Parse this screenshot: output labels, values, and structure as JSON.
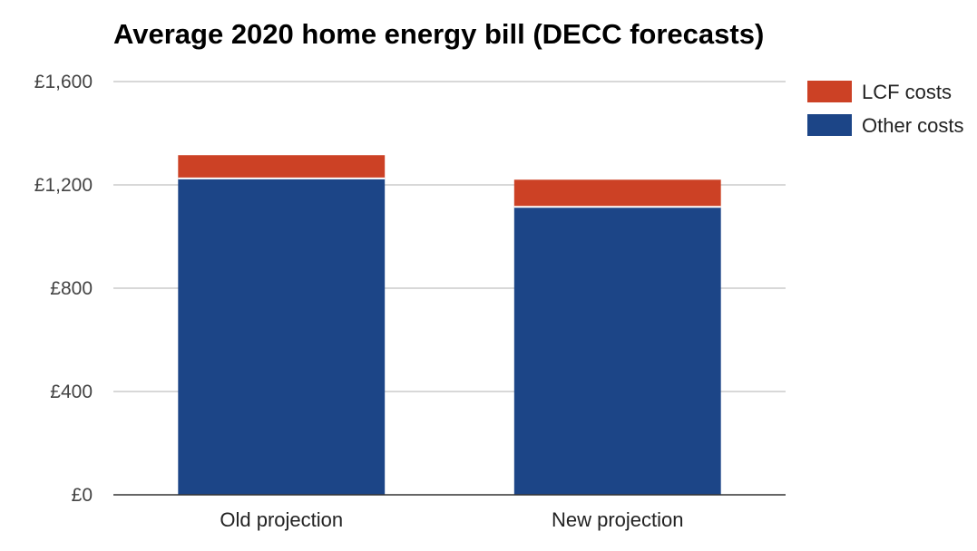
{
  "chart_data": {
    "type": "bar",
    "stacked": true,
    "title": "Average 2020 home energy bill (DECC forecasts)",
    "xlabel": "",
    "ylabel": "",
    "categories": [
      "Old projection",
      "New projection"
    ],
    "series": [
      {
        "name": "Other costs",
        "values": [
          1225,
          1115
        ],
        "color": "#1c4587"
      },
      {
        "name": "LCF costs",
        "values": [
          90,
          105
        ],
        "color": "#cc4125"
      }
    ],
    "ylim": [
      0,
      1600
    ],
    "yticks": [
      0,
      400,
      800,
      1200,
      1600
    ],
    "ytick_labels": [
      "£0",
      "£400",
      "£800",
      "£1,200",
      "£1,600"
    ],
    "grid": true,
    "legend_position": "right",
    "legend": [
      {
        "name": "LCF costs",
        "color": "#cc4125"
      },
      {
        "name": "Other costs",
        "color": "#1c4587"
      }
    ]
  }
}
